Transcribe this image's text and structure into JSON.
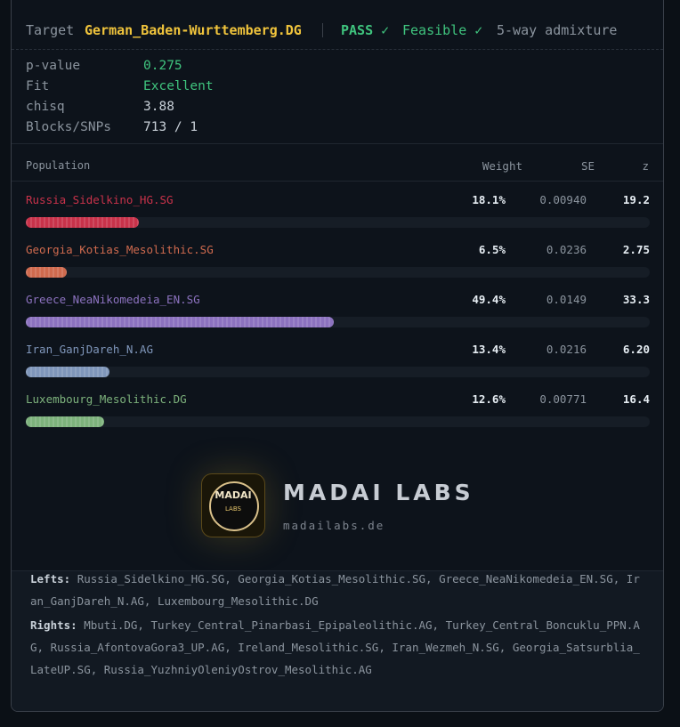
{
  "header": {
    "target_label": "Target",
    "target": "German_Baden-Wurttemberg.DG",
    "status": [
      "PASS ✓",
      "Feasible ✓"
    ],
    "model": "5-way admixture"
  },
  "stats": [
    {
      "label": "p-value",
      "value": "0.275"
    },
    {
      "label": "Fit",
      "value": "Excellent"
    },
    {
      "label": "chisq",
      "value": "3.88"
    },
    {
      "label": "Blocks/SNPs",
      "value": "713 / 1"
    }
  ],
  "table": {
    "columns": [
      "Population",
      "Weight",
      "SE",
      "z"
    ],
    "rows": [
      {
        "name": "Russia_Sidelkino_HG.SG",
        "weight": 18.1,
        "weight_label": "18.1%",
        "se": "0.00940",
        "z": "19.2",
        "color": "#c8324a"
      },
      {
        "name": "Georgia_Kotias_Mesolithic.SG",
        "weight": 6.5,
        "weight_label": "6.5%",
        "se": "0.0236",
        "z": "2.75",
        "color": "#cf6a4e"
      },
      {
        "name": "Greece_NeaNikomedeia_EN.SG",
        "weight": 49.4,
        "weight_label": "49.4%",
        "se": "0.0149",
        "z": "33.3",
        "color": "#8c72bf"
      },
      {
        "name": "Iran_GanjDareh_N.AG",
        "weight": 13.4,
        "weight_label": "13.4%",
        "se": "0.0216",
        "z": "6.20",
        "color": "#7f96ba"
      },
      {
        "name": "Luxembourg_Mesolithic.DG",
        "weight": 12.6,
        "weight_label": "12.6%",
        "se": "0.00771",
        "z": "16.4",
        "color": "#7db27c"
      }
    ]
  },
  "logo": {
    "badge_top": "MADAI",
    "badge_bottom": "LABS",
    "title": "MADAI LABS",
    "url": "madailabs.de"
  },
  "footer": {
    "lefts_label": "Lefts:",
    "lefts": "Russia_Sidelkino_HG.SG, Georgia_Kotias_Mesolithic.SG, Greece_NeaNikomedeia_EN.SG, Iran_GanjDareh_N.AG, Luxembourg_Mesolithic.DG",
    "rights_label": "Rights:",
    "rights": "Mbuti.DG, Turkey_Central_Pinarbasi_Epipaleolithic.AG, Turkey_Central_Boncuklu_PPN.AG, Russia_AfontovaGora3_UP.AG, Ireland_Mesolithic.SG, Iran_Wezmeh_N.SG, Georgia_Satsurblia_LateUP.SG, Russia_YuzhniyOleniyOstrov_Mesolithic.AG"
  }
}
